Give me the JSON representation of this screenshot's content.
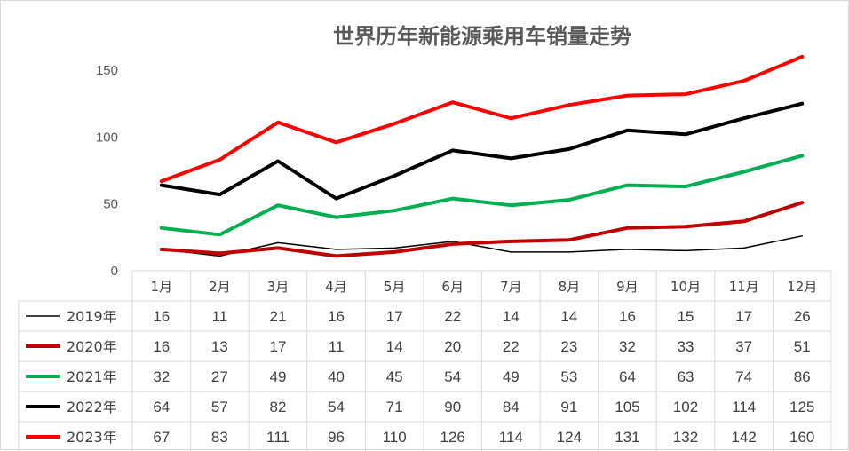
{
  "chart_data": {
    "type": "line",
    "title": "世界历年新能源乘用车销量走势",
    "categories": [
      "1月",
      "2月",
      "3月",
      "4月",
      "5月",
      "6月",
      "7月",
      "8月",
      "9月",
      "10月",
      "11月",
      "12月"
    ],
    "ylim": [
      0,
      150
    ],
    "yticks": [
      0,
      50,
      100,
      150
    ],
    "grid": false,
    "legend": "data-table-bottom",
    "series": [
      {
        "name": "2019年",
        "color": "#000000",
        "width": "thin",
        "values": [
          16,
          11,
          21,
          16,
          17,
          22,
          14,
          14,
          16,
          15,
          17,
          26
        ]
      },
      {
        "name": "2020年",
        "color": "#c00000",
        "width": "thick",
        "values": [
          16,
          13,
          17,
          11,
          14,
          20,
          22,
          23,
          32,
          33,
          37,
          51
        ]
      },
      {
        "name": "2021年",
        "color": "#00b050",
        "width": "thick",
        "values": [
          32,
          27,
          49,
          40,
          45,
          54,
          49,
          53,
          64,
          63,
          74,
          86
        ]
      },
      {
        "name": "2022年",
        "color": "#000000",
        "width": "thick",
        "values": [
          64,
          57,
          82,
          54,
          71,
          90,
          84,
          91,
          105,
          102,
          114,
          125
        ]
      },
      {
        "name": "2023年",
        "color": "#ff0000",
        "width": "thick",
        "values": [
          67,
          83,
          111,
          96,
          110,
          126,
          114,
          124,
          131,
          132,
          142,
          160
        ]
      }
    ]
  }
}
